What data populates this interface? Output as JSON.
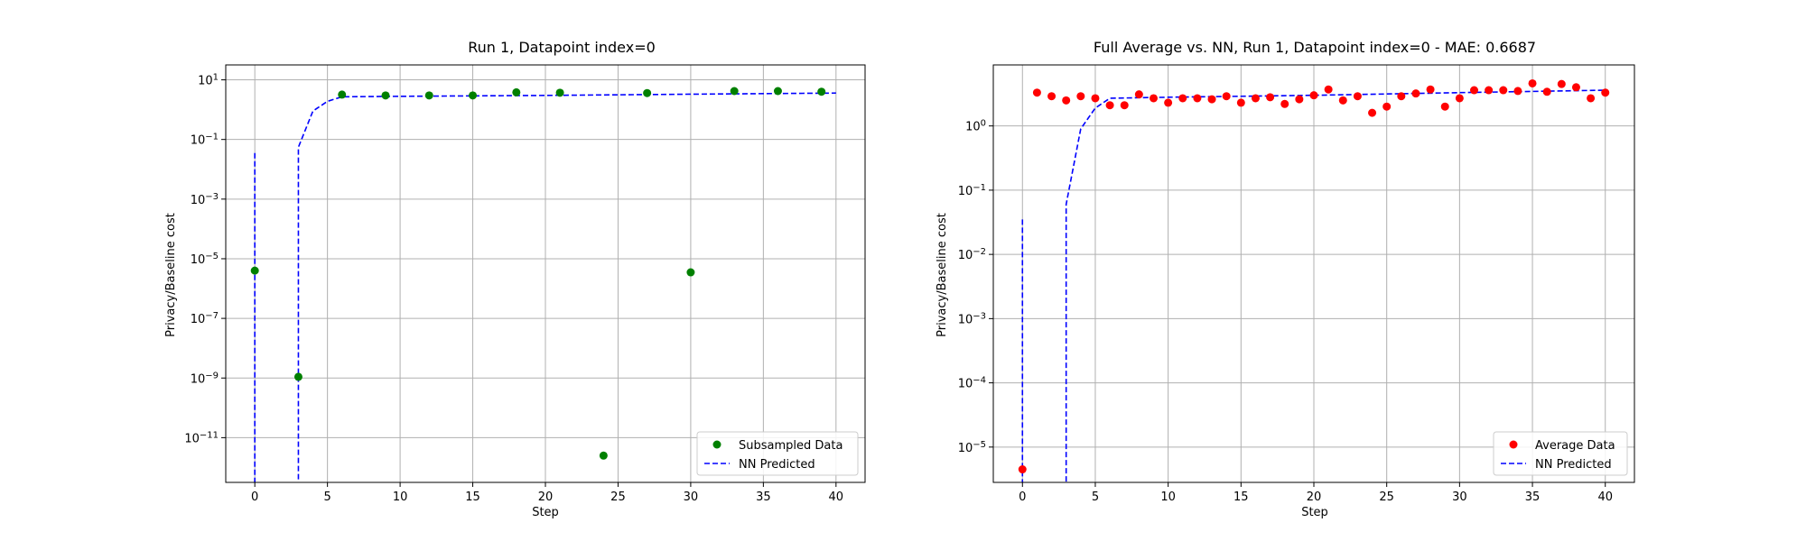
{
  "chart_data": [
    {
      "type": "scatter",
      "title": "Run 1, Datapoint index=0",
      "xlabel": "Step",
      "ylabel": "Privacy/Baseline cost",
      "xlim": [
        -2,
        42
      ],
      "ylim_log10": [
        -12.5,
        1.5
      ],
      "yscale": "log",
      "grid": true,
      "legend_position": "lower right",
      "xticks": [
        {
          "v": 0,
          "label": "0"
        },
        {
          "v": 5,
          "label": "5"
        },
        {
          "v": 10,
          "label": "10"
        },
        {
          "v": 15,
          "label": "15"
        },
        {
          "v": 20,
          "label": "20"
        },
        {
          "v": 25,
          "label": "25"
        },
        {
          "v": 30,
          "label": "30"
        },
        {
          "v": 35,
          "label": "35"
        },
        {
          "v": 40,
          "label": "40"
        }
      ],
      "yticks": [
        {
          "e": 1,
          "label": "10",
          "exp": "1"
        },
        {
          "e": -1,
          "label": "10",
          "exp": "−1"
        },
        {
          "e": -3,
          "label": "10",
          "exp": "−3"
        },
        {
          "e": -5,
          "label": "10",
          "exp": "−5"
        },
        {
          "e": -7,
          "label": "10",
          "exp": "−7"
        },
        {
          "e": -9,
          "label": "10",
          "exp": "−9"
        },
        {
          "e": -11,
          "label": "10",
          "exp": "−11"
        }
      ],
      "series": [
        {
          "name": "Subsampled Data",
          "kind": "scatter",
          "color": "#008000",
          "points": [
            [
              0,
              4e-06
            ],
            [
              3,
              1.1e-09
            ],
            [
              6,
              3.2
            ],
            [
              9,
              3.0
            ],
            [
              12,
              3.0
            ],
            [
              15,
              3.0
            ],
            [
              18,
              3.8
            ],
            [
              21,
              3.7
            ],
            [
              24,
              2.5e-12
            ],
            [
              27,
              3.6
            ],
            [
              30,
              3.5e-06
            ],
            [
              33,
              4.2
            ],
            [
              36,
              4.2
            ],
            [
              39,
              4.0
            ]
          ]
        },
        {
          "name": "NN Predicted",
          "kind": "line",
          "color": "#0000ff",
          "dash": "dashed",
          "points": [
            [
              0,
              0.035
            ],
            [
              0,
              1e-13
            ],
            [
              3,
              1e-13
            ],
            [
              3,
              0.055
            ],
            [
              4,
              0.9
            ],
            [
              5,
              1.9
            ],
            [
              6,
              2.7
            ],
            [
              10,
              2.8
            ],
            [
              20,
              3.0
            ],
            [
              30,
              3.3
            ],
            [
              40,
              3.6
            ]
          ]
        }
      ]
    },
    {
      "type": "scatter",
      "title": "Full Average vs. NN, Run 1, Datapoint index=0 - MAE: 0.6687",
      "xlabel": "Step",
      "ylabel": "Privacy/Baseline cost",
      "xlim": [
        -2,
        42
      ],
      "ylim_log10": [
        -5.55,
        0.95
      ],
      "yscale": "log",
      "grid": true,
      "legend_position": "lower right",
      "xticks": [
        {
          "v": 0,
          "label": "0"
        },
        {
          "v": 5,
          "label": "5"
        },
        {
          "v": 10,
          "label": "10"
        },
        {
          "v": 15,
          "label": "15"
        },
        {
          "v": 20,
          "label": "20"
        },
        {
          "v": 25,
          "label": "25"
        },
        {
          "v": 30,
          "label": "30"
        },
        {
          "v": 35,
          "label": "35"
        },
        {
          "v": 40,
          "label": "40"
        }
      ],
      "yticks": [
        {
          "e": 0,
          "label": "10",
          "exp": "0"
        },
        {
          "e": -1,
          "label": "10",
          "exp": "−1"
        },
        {
          "e": -2,
          "label": "10",
          "exp": "−2"
        },
        {
          "e": -3,
          "label": "10",
          "exp": "−3"
        },
        {
          "e": -4,
          "label": "10",
          "exp": "−4"
        },
        {
          "e": -5,
          "label": "10",
          "exp": "−5"
        }
      ],
      "series": [
        {
          "name": "Average Data",
          "kind": "scatter",
          "color": "#ff0000",
          "points": [
            [
              0,
              4.5e-06
            ],
            [
              1,
              3.3
            ],
            [
              2,
              2.9
            ],
            [
              3,
              2.5
            ],
            [
              4,
              2.9
            ],
            [
              5,
              2.7
            ],
            [
              6,
              2.1
            ],
            [
              7,
              2.1
            ],
            [
              8,
              3.1
            ],
            [
              9,
              2.7
            ],
            [
              10,
              2.3
            ],
            [
              11,
              2.7
            ],
            [
              12,
              2.7
            ],
            [
              13,
              2.6
            ],
            [
              14,
              2.9
            ],
            [
              15,
              2.3
            ],
            [
              16,
              2.7
            ],
            [
              17,
              2.8
            ],
            [
              18,
              2.2
            ],
            [
              19,
              2.6
            ],
            [
              20,
              3.0
            ],
            [
              21,
              3.7
            ],
            [
              22,
              2.5
            ],
            [
              23,
              2.9
            ],
            [
              24,
              1.6
            ],
            [
              25,
              2.0
            ],
            [
              26,
              2.9
            ],
            [
              27,
              3.2
            ],
            [
              28,
              3.7
            ],
            [
              29,
              2.0
            ],
            [
              30,
              2.7
            ],
            [
              31,
              3.6
            ],
            [
              32,
              3.6
            ],
            [
              33,
              3.6
            ],
            [
              34,
              3.5
            ],
            [
              35,
              4.6
            ],
            [
              36,
              3.4
            ],
            [
              37,
              4.5
            ],
            [
              38,
              4.0
            ],
            [
              39,
              2.7
            ],
            [
              40,
              3.3
            ]
          ]
        },
        {
          "name": "NN Predicted",
          "kind": "line",
          "color": "#0000ff",
          "dash": "dashed",
          "points": [
            [
              0,
              0.035
            ],
            [
              0,
              1e-06
            ],
            [
              3,
              1e-06
            ],
            [
              3,
              0.06
            ],
            [
              4,
              0.9
            ],
            [
              5,
              1.9
            ],
            [
              6,
              2.7
            ],
            [
              10,
              2.8
            ],
            [
              20,
              3.0
            ],
            [
              30,
              3.3
            ],
            [
              40,
              3.6
            ]
          ]
        }
      ]
    }
  ]
}
